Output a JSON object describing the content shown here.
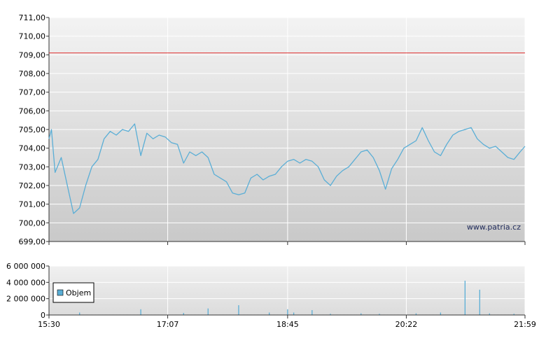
{
  "watermark": "www.patria.cz",
  "colors": {
    "price_line": "#5aaed6",
    "reference_line": "#e03030",
    "volume_bar": "#5aaed6",
    "grid": "#ffffff",
    "axis": "#333333"
  },
  "chart_data": [
    {
      "type": "line",
      "name": "price",
      "ylim": [
        699,
        711
      ],
      "y_ticks": [
        "711,00",
        "710,00",
        "709,00",
        "708,00",
        "707,00",
        "706,00",
        "705,00",
        "704,00",
        "703,00",
        "702,00",
        "701,00",
        "700,00",
        "699,00"
      ],
      "x_ticks": [
        "15:30",
        "17:07",
        "18:45",
        "20:22",
        "21:59"
      ],
      "reference_line": 709.1,
      "x": [
        "15:30",
        "15:32",
        "15:35",
        "15:40",
        "15:45",
        "15:50",
        "15:55",
        "16:00",
        "16:05",
        "16:10",
        "16:15",
        "16:20",
        "16:25",
        "16:30",
        "16:35",
        "16:40",
        "16:45",
        "16:50",
        "16:55",
        "17:00",
        "17:05",
        "17:10",
        "17:15",
        "17:20",
        "17:25",
        "17:30",
        "17:35",
        "17:40",
        "17:45",
        "17:50",
        "17:55",
        "18:00",
        "18:05",
        "18:10",
        "18:15",
        "18:20",
        "18:25",
        "18:30",
        "18:35",
        "18:40",
        "18:45",
        "18:50",
        "18:55",
        "19:00",
        "19:05",
        "19:10",
        "19:15",
        "19:20",
        "19:25",
        "19:30",
        "19:35",
        "19:40",
        "19:45",
        "19:50",
        "19:55",
        "20:00",
        "20:05",
        "20:10",
        "20:15",
        "20:20",
        "20:25",
        "20:30",
        "20:35",
        "20:40",
        "20:45",
        "20:50",
        "20:55",
        "21:00",
        "21:05",
        "21:10",
        "21:15",
        "21:20",
        "21:25",
        "21:30",
        "21:35",
        "21:40",
        "21:45",
        "21:50",
        "21:55",
        "21:59"
      ],
      "values": [
        704.5,
        705.0,
        702.7,
        703.5,
        702.0,
        700.5,
        700.8,
        702.0,
        703.0,
        703.4,
        704.5,
        704.9,
        704.7,
        705.0,
        704.9,
        705.3,
        703.6,
        704.8,
        704.5,
        704.7,
        704.6,
        704.3,
        704.2,
        703.2,
        703.8,
        703.6,
        703.8,
        703.5,
        702.6,
        702.4,
        702.2,
        701.6,
        701.5,
        701.6,
        702.4,
        702.6,
        702.3,
        702.5,
        702.6,
        703.0,
        703.3,
        703.4,
        703.2,
        703.4,
        703.3,
        703.0,
        702.3,
        702.0,
        702.5,
        702.8,
        703.0,
        703.4,
        703.8,
        703.9,
        703.5,
        702.8,
        701.8,
        702.9,
        703.4,
        704.0,
        704.2,
        704.4,
        705.1,
        704.4,
        703.8,
        703.6,
        704.2,
        704.7,
        704.9,
        705.0,
        705.1,
        704.5,
        704.2,
        704.0,
        704.1,
        703.8,
        703.5,
        703.4,
        703.8,
        704.1
      ]
    },
    {
      "type": "bar",
      "name": "volume",
      "legend": "Objem",
      "ylim": [
        0,
        6000000
      ],
      "y_ticks": [
        "6 000 000",
        "4 000 000",
        "2 000 000",
        "0"
      ],
      "x_ticks": [
        "15:30",
        "17:07",
        "18:45",
        "20:22",
        "21:59"
      ],
      "x": [
        "15:55",
        "16:45",
        "17:20",
        "17:40",
        "18:05",
        "18:30",
        "18:45",
        "18:50",
        "19:05",
        "19:20",
        "19:45",
        "20:00",
        "20:30",
        "20:50",
        "21:10",
        "21:22",
        "21:30",
        "21:50"
      ],
      "values": [
        300000,
        700000,
        250000,
        800000,
        1200000,
        300000,
        700000,
        300000,
        600000,
        150000,
        200000,
        150000,
        200000,
        300000,
        4200000,
        3100000,
        200000,
        150000
      ]
    }
  ]
}
